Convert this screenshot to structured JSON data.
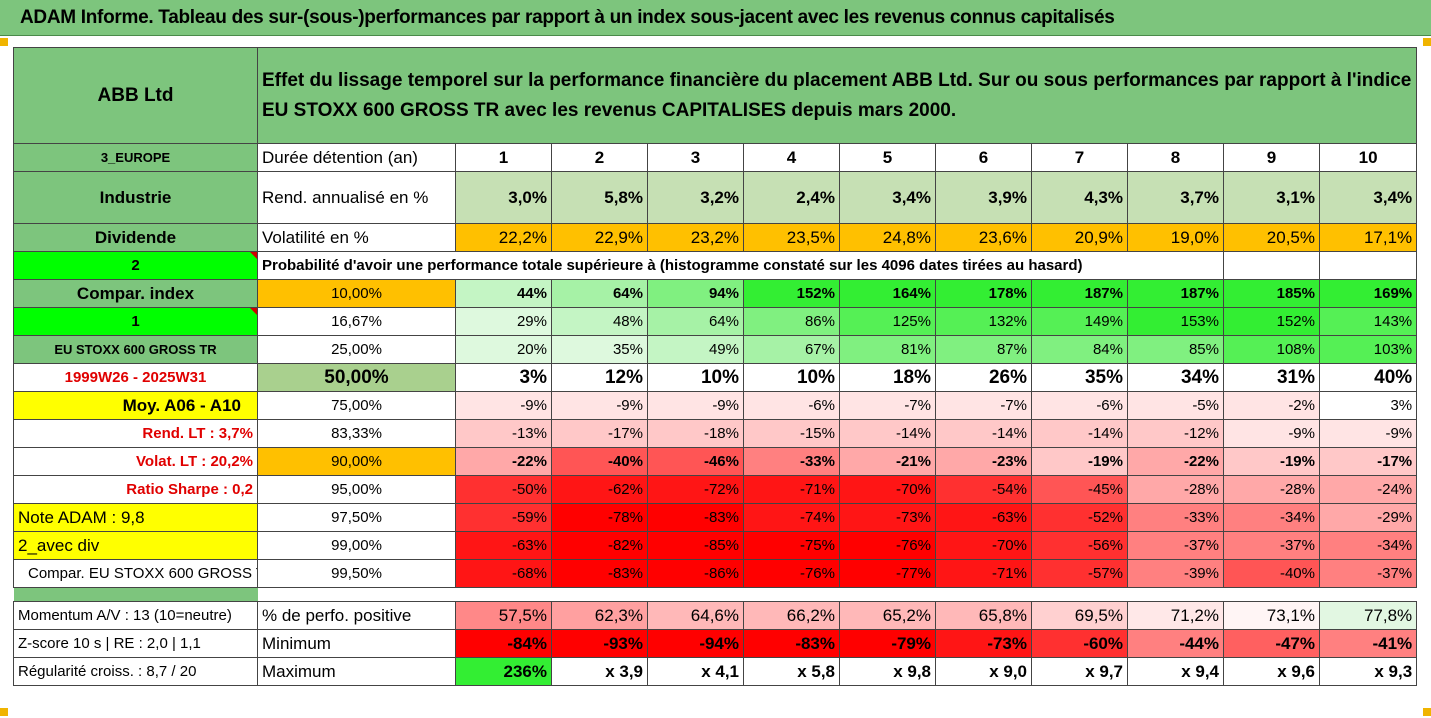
{
  "title": "ADAM Informe. Tableau des sur-(sous-)performances par rapport à un index sous-jacent avec les revenus connus capitalisés",
  "header": {
    "company": "ABB Ltd",
    "description": "Effet du lissage temporel sur la performance financière du placement ABB Ltd. Sur ou sous performances par rapport à l'indice EU STOXX 600 GROSS TR avec les revenus CAPITALISES depuis mars 2000."
  },
  "left": {
    "region": "3_EUROPE",
    "sector": "Industrie",
    "dividende": "Dividende",
    "num2": "2",
    "compar_index": "Compar. index",
    "num1": "1",
    "index_name": "EU STOXX 600 GROSS TR",
    "period": "1999W26 - 2025W31",
    "moy": "Moy. A06 - A10",
    "rend_lt": "Rend. LT :    3,7%",
    "volat_lt": "Volat. LT :   20,2%",
    "sharpe": "Ratio Sharpe :   0,2",
    "note": "Note ADAM : 9,8",
    "avec_div": "2_avec div",
    "compar_full": "Compar. EU STOXX 600 GROSS TR",
    "momentum": "Momentum A/V : 13 (10=neutre)",
    "zscore": "Z-score 10 s  |  RE : 2,0  |  1,1",
    "regularite": "Régularité croiss. : 8,7 / 20"
  },
  "labels": {
    "duree": "Durée détention (an)",
    "rend": "Rend. annualisé en %",
    "volat": "Volatilité en %",
    "proba": "Probabilité d'avoir une performance totale supérieure à (histogramme constaté sur les 4096 dates tirées au hasard)",
    "perf_pos": "% de perfo. positive",
    "minimum": "Minimum",
    "maximum": "Maximum"
  },
  "years": [
    "1",
    "2",
    "3",
    "4",
    "5",
    "6",
    "7",
    "8",
    "9",
    "10"
  ],
  "rend": [
    "3,0%",
    "5,8%",
    "3,2%",
    "2,4%",
    "3,4%",
    "3,9%",
    "4,3%",
    "3,7%",
    "3,1%",
    "3,4%"
  ],
  "volat": [
    "22,2%",
    "22,9%",
    "23,2%",
    "23,5%",
    "24,8%",
    "23,6%",
    "20,9%",
    "19,0%",
    "20,5%",
    "17,1%"
  ],
  "pct": [
    "10,00%",
    "16,67%",
    "25,00%",
    "50,00%",
    "75,00%",
    "83,33%",
    "90,00%",
    "95,00%",
    "97,50%",
    "99,00%",
    "99,50%"
  ],
  "grid": [
    [
      "44%",
      "64%",
      "94%",
      "152%",
      "164%",
      "178%",
      "187%",
      "187%",
      "185%",
      "169%"
    ],
    [
      "29%",
      "48%",
      "64%",
      "86%",
      "125%",
      "132%",
      "149%",
      "153%",
      "152%",
      "143%"
    ],
    [
      "20%",
      "35%",
      "49%",
      "67%",
      "81%",
      "87%",
      "84%",
      "85%",
      "108%",
      "103%"
    ],
    [
      "3%",
      "12%",
      "10%",
      "10%",
      "18%",
      "26%",
      "35%",
      "34%",
      "31%",
      "40%"
    ],
    [
      "-9%",
      "-9%",
      "-9%",
      "-6%",
      "-7%",
      "-7%",
      "-6%",
      "-5%",
      "-2%",
      "3%"
    ],
    [
      "-13%",
      "-17%",
      "-18%",
      "-15%",
      "-14%",
      "-14%",
      "-14%",
      "-12%",
      "-9%",
      "-9%"
    ],
    [
      "-22%",
      "-40%",
      "-46%",
      "-33%",
      "-21%",
      "-23%",
      "-19%",
      "-22%",
      "-19%",
      "-17%"
    ],
    [
      "-50%",
      "-62%",
      "-72%",
      "-71%",
      "-70%",
      "-54%",
      "-45%",
      "-28%",
      "-28%",
      "-24%"
    ],
    [
      "-59%",
      "-78%",
      "-83%",
      "-74%",
      "-73%",
      "-63%",
      "-52%",
      "-33%",
      "-34%",
      "-29%"
    ],
    [
      "-63%",
      "-82%",
      "-85%",
      "-75%",
      "-76%",
      "-70%",
      "-56%",
      "-37%",
      "-37%",
      "-34%"
    ],
    [
      "-68%",
      "-83%",
      "-86%",
      "-76%",
      "-77%",
      "-71%",
      "-57%",
      "-39%",
      "-40%",
      "-37%"
    ]
  ],
  "perf_pos": [
    "57,5%",
    "62,3%",
    "64,6%",
    "66,2%",
    "65,2%",
    "65,8%",
    "69,5%",
    "71,2%",
    "73,1%",
    "77,8%"
  ],
  "minimum": [
    "-84%",
    "-93%",
    "-94%",
    "-83%",
    "-79%",
    "-73%",
    "-60%",
    "-44%",
    "-47%",
    "-41%"
  ],
  "maximum": [
    "236%",
    "x 3,9",
    "x 4,1",
    "x 5,8",
    "x 9,8",
    "x 9,0",
    "x 9,7",
    "x 9,4",
    "x 9,6",
    "x 9,3"
  ],
  "colors": {
    "header_green": "#7dc57d",
    "rend_green": "#c6e0b4",
    "volat_orange": "#ffc000",
    "bright_green": "#00ff00",
    "yellow": "#ffff00",
    "red": "#ff0000"
  }
}
